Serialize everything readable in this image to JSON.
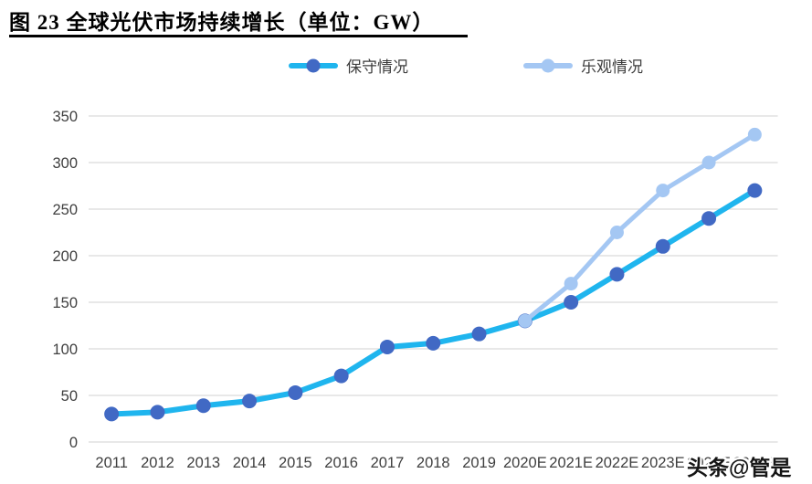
{
  "header": {
    "title": "图 23 全球光伏市场持续增长（单位：GW）"
  },
  "watermark": {
    "text": "头条@管是"
  },
  "chart_data": {
    "type": "line",
    "title": "图 23 全球光伏市场持续增长（单位：GW）",
    "xlabel": "",
    "ylabel": "",
    "unit": "GW",
    "categories": [
      "2011",
      "2012",
      "2013",
      "2014",
      "2015",
      "2016",
      "2017",
      "2018",
      "2019",
      "2020E",
      "2021E",
      "2022E",
      "2023E",
      "2024E",
      "2025E"
    ],
    "series": [
      {
        "key": "conservative",
        "name": "保守情况",
        "line_color": "#1FB5EE",
        "marker_color": "#4169C4",
        "line_width": 6,
        "marker_radius": 8,
        "values": [
          30,
          32,
          39,
          44,
          53,
          71,
          102,
          106,
          116,
          130,
          150,
          180,
          210,
          240,
          270
        ]
      },
      {
        "key": "optimistic",
        "name": "乐观情况",
        "line_color": "#A4C7F3",
        "marker_color": "#A4C7F3",
        "line_width": 5,
        "marker_radius": 7.5,
        "values": [
          null,
          null,
          null,
          null,
          null,
          null,
          null,
          null,
          null,
          130,
          170,
          225,
          270,
          300,
          330
        ]
      }
    ],
    "ylim": [
      0,
      350
    ],
    "yticks": [
      0,
      50,
      100,
      150,
      200,
      250,
      300,
      350
    ],
    "grid": true,
    "gridline_color": "#D9D9D9",
    "axis_label_color": "#3f3f3f",
    "legend_position": "top"
  }
}
